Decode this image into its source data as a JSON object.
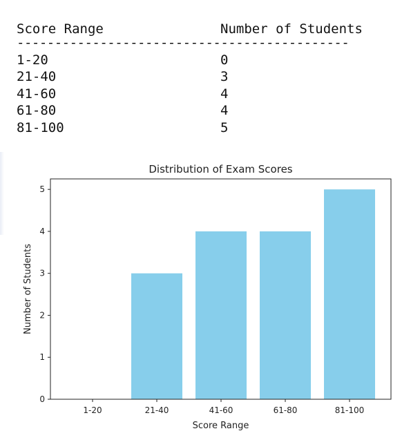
{
  "table": {
    "headers": [
      "Score Range",
      "Number of Students"
    ],
    "separator": "--------------------------------------------",
    "rows": [
      {
        "range": "1-20",
        "count": "0"
      },
      {
        "range": "21-40",
        "count": "3"
      },
      {
        "range": "41-60",
        "count": "4"
      },
      {
        "range": "61-80",
        "count": "4"
      },
      {
        "range": "81-100",
        "count": "5"
      }
    ]
  },
  "chart_data": {
    "type": "bar",
    "title": "Distribution of Exam Scores",
    "xlabel": "Score Range",
    "ylabel": "Number of Students",
    "categories": [
      "1-20",
      "21-40",
      "41-60",
      "61-80",
      "81-100"
    ],
    "values": [
      0,
      3,
      4,
      4,
      5
    ],
    "ylim": [
      0,
      5.25
    ],
    "yticks": [
      "0",
      "1",
      "2",
      "3",
      "4",
      "5"
    ],
    "bar_color": "#87CEEB",
    "grid": false
  }
}
